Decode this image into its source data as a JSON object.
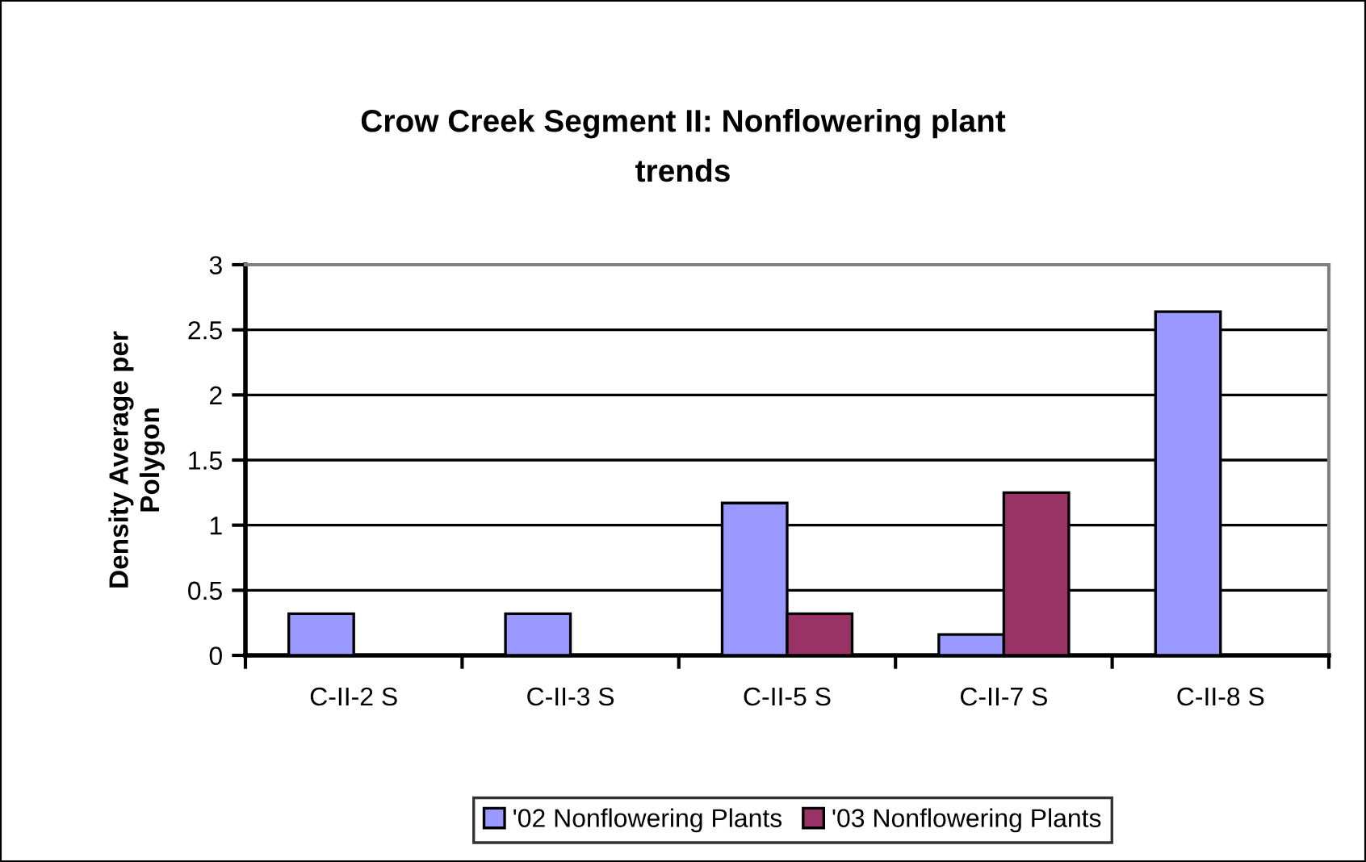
{
  "chart_data": {
    "type": "bar",
    "title": "Crow Creek Segment II: Nonflowering plant\ntrends",
    "ylabel": "Density Average per\nPolygon",
    "categories": [
      "C-II-2 S",
      "C-II-3 S",
      "C-II-5 S",
      "C-II-7 S",
      "C-II-8 S"
    ],
    "series": [
      {
        "name": "'02 Nonflowering Plants",
        "color": "#9999ff",
        "values": [
          0.32,
          0.32,
          1.17,
          0.16,
          2.64
        ]
      },
      {
        "name": "'03 Nonflowering Plants",
        "color": "#993366",
        "values": [
          null,
          null,
          0.32,
          1.25,
          null
        ]
      }
    ],
    "ylim": [
      0,
      3
    ],
    "yticks": [
      0,
      0.5,
      1,
      1.5,
      2,
      2.5,
      3
    ],
    "grid": "y",
    "legend": "bottom"
  }
}
